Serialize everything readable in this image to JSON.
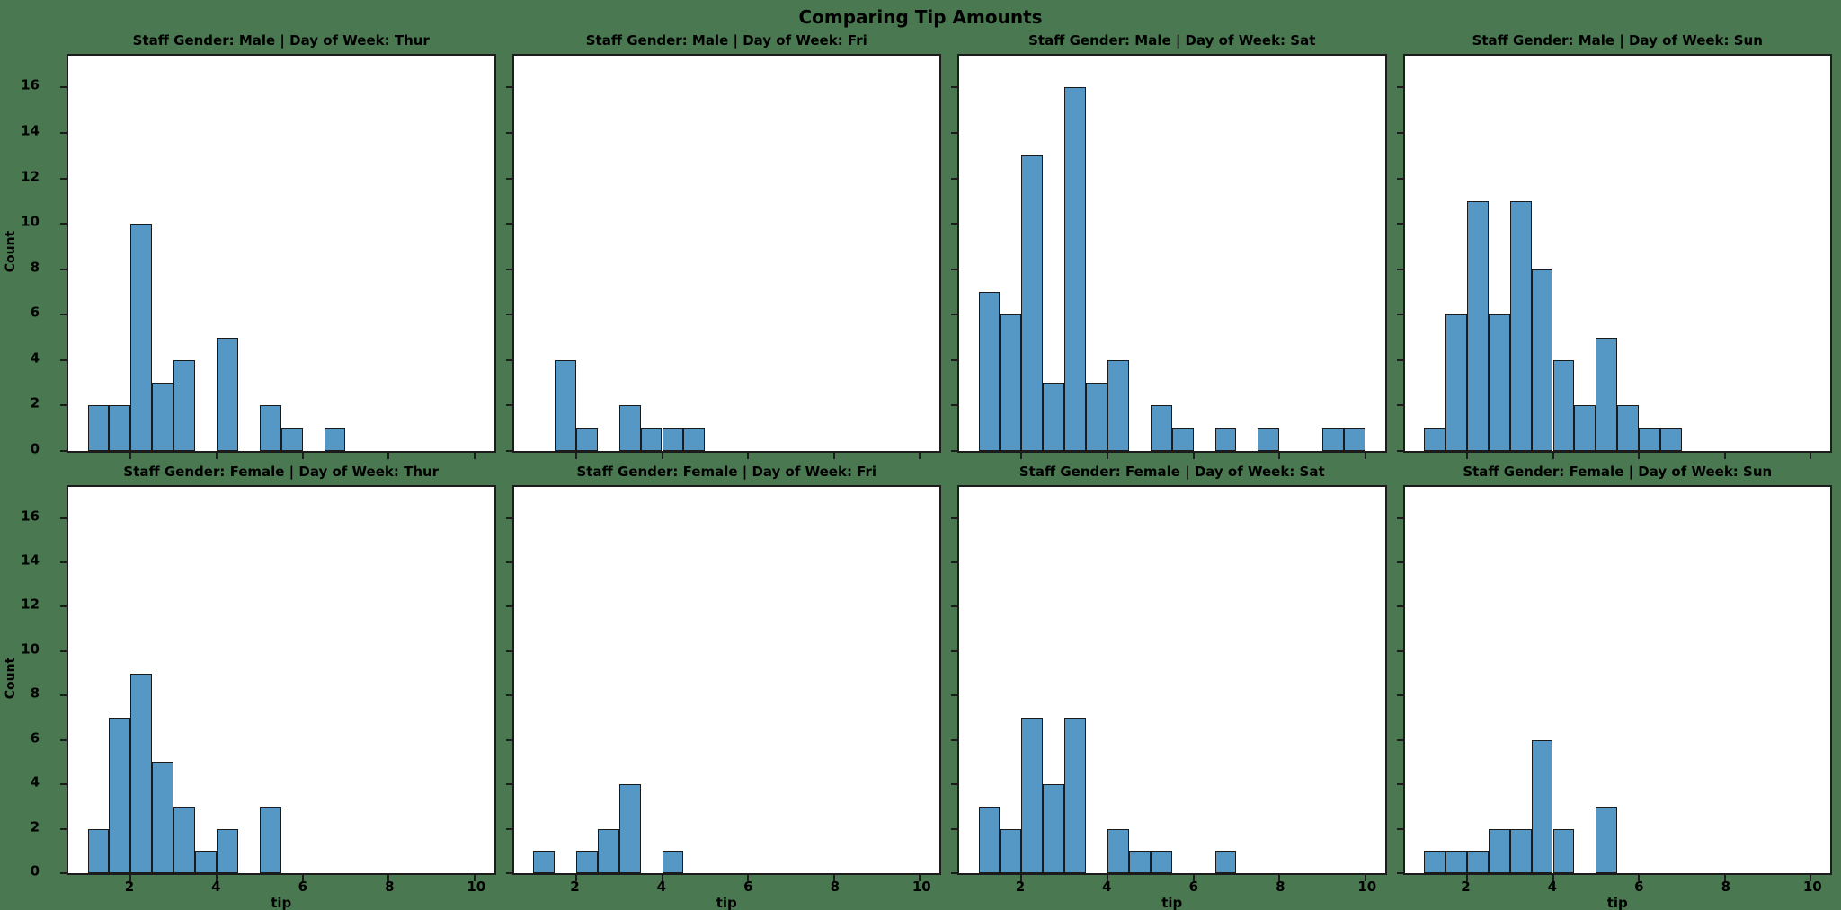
{
  "figure": {
    "title": "Comparing Tip Amounts"
  },
  "colors": {
    "background": "#4a7951",
    "bar_fill": "#5598c6",
    "bar_edge": "#1a1a1a",
    "plot_background": "#ffffff",
    "text": "#000000"
  },
  "chart_data": {
    "type": "bar",
    "subtype": "faceted-histogram",
    "title": "Comparing Tip Amounts",
    "xlabel": "tip",
    "ylabel": "Count",
    "xlim": [
      0.55,
      10.45
    ],
    "ylim": [
      0,
      17.4
    ],
    "xticks": [
      2,
      4,
      6,
      8,
      10
    ],
    "yticks": [
      0,
      2,
      4,
      6,
      8,
      10,
      12,
      14,
      16
    ],
    "grid": false,
    "legend": false,
    "bin_start": 1.0,
    "bin_width": 0.5,
    "facet_rows": [
      "Male",
      "Female"
    ],
    "facet_cols": [
      "Thur",
      "Fri",
      "Sat",
      "Sun"
    ],
    "facets": [
      {
        "gender": "Male",
        "day": "Thur",
        "title": "Staff Gender: Male | Day of Week: Thur",
        "counts": [
          2,
          2,
          10,
          3,
          4,
          0,
          5,
          0,
          2,
          1,
          0,
          1
        ]
      },
      {
        "gender": "Male",
        "day": "Fri",
        "title": "Staff Gender: Male | Day of Week: Fri",
        "counts": [
          0,
          4,
          1,
          0,
          2,
          1,
          1,
          1
        ]
      },
      {
        "gender": "Male",
        "day": "Sat",
        "title": "Staff Gender: Male | Day of Week: Sat",
        "counts": [
          7,
          6,
          13,
          3,
          16,
          3,
          4,
          0,
          2,
          1,
          0,
          1,
          0,
          1,
          0,
          0,
          1,
          1
        ]
      },
      {
        "gender": "Male",
        "day": "Sun",
        "title": "Staff Gender: Male | Day of Week: Sun",
        "counts": [
          1,
          6,
          11,
          6,
          11,
          8,
          4,
          2,
          5,
          2,
          1,
          1
        ]
      },
      {
        "gender": "Female",
        "day": "Thur",
        "title": "Staff Gender: Female | Day of Week: Thur",
        "counts": [
          2,
          7,
          9,
          5,
          3,
          1,
          2,
          0,
          3
        ]
      },
      {
        "gender": "Female",
        "day": "Fri",
        "title": "Staff Gender: Female | Day of Week: Fri",
        "counts": [
          1,
          0,
          1,
          2,
          4,
          0,
          1
        ]
      },
      {
        "gender": "Female",
        "day": "Sat",
        "title": "Staff Gender: Female | Day of Week: Sat",
        "counts": [
          3,
          2,
          7,
          4,
          7,
          0,
          2,
          1,
          1,
          0,
          0,
          1
        ]
      },
      {
        "gender": "Female",
        "day": "Sun",
        "title": "Staff Gender: Female | Day of Week: Sun",
        "counts": [
          1,
          1,
          1,
          2,
          2,
          6,
          2,
          0,
          3
        ]
      }
    ]
  }
}
